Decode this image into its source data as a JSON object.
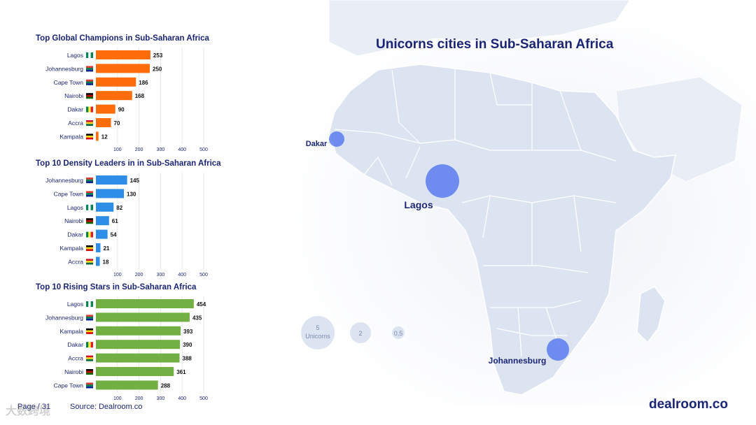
{
  "map": {
    "title": "Unicorns cities in Sub-Saharan Africa",
    "cities": [
      {
        "name": "Lagos",
        "unicorns": 5
      },
      {
        "name": "Dakar",
        "unicorns": 1
      },
      {
        "name": "Johannesburg",
        "unicorns": 2
      }
    ],
    "legend": [
      {
        "value_label": "5",
        "sub_label": "Unicorns"
      },
      {
        "value_label": "2",
        "sub_label": ""
      },
      {
        "value_label": "0,5",
        "sub_label": ""
      }
    ]
  },
  "footer": {
    "page": "Page / 31",
    "source": "Source: Dealroom.co",
    "brand": "dealroom.co",
    "watermark": "大数跨境"
  },
  "colors": {
    "navy": "#1a2575",
    "orange": "#ff6d0a",
    "blue": "#2e8de6",
    "green": "#72b043",
    "bubble": "#5b7cf0",
    "land": "#dde4f1"
  },
  "chart_data": [
    {
      "type": "bar",
      "orientation": "horizontal",
      "title": "Top Global Champions in Sub-Saharan Africa",
      "categories": [
        "Lagos",
        "Johannesburg",
        "Cape Town",
        "Nairobi",
        "Dakar",
        "Accra",
        "Kampala"
      ],
      "values": [
        253,
        250,
        186,
        168,
        90,
        70,
        12
      ],
      "flags": [
        "nigeria-flag",
        "south-africa-flag",
        "south-africa-flag",
        "kenya-flag",
        "senegal-flag",
        "ghana-flag",
        "uganda-flag"
      ],
      "xticks": [
        "100",
        "200",
        "300",
        "400",
        "500"
      ],
      "xlim": [
        0,
        500
      ],
      "color": "#ff6d0a"
    },
    {
      "type": "bar",
      "orientation": "horizontal",
      "title": "Top 10 Density Leaders in in Sub-Saharan Africa",
      "categories": [
        "Johannesburg",
        "Cape Town",
        "Lagos",
        "Nairobi",
        "Dakar",
        "Kampala",
        "Accra"
      ],
      "values": [
        145,
        130,
        82,
        61,
        54,
        21,
        18
      ],
      "flags": [
        "south-africa-flag",
        "south-africa-flag",
        "nigeria-flag",
        "kenya-flag",
        "senegal-flag",
        "uganda-flag",
        "ghana-flag"
      ],
      "xticks": [
        "100",
        "200",
        "300",
        "400",
        "500"
      ],
      "xlim": [
        0,
        500
      ],
      "color": "#2e8de6"
    },
    {
      "type": "bar",
      "orientation": "horizontal",
      "title": "Top 10 Rising Stars in Sub-Saharan Africa",
      "categories": [
        "Lagos",
        "Johannesburg",
        "Kampala",
        "Dakar",
        "Accra",
        "Nairobi",
        "Cape Town"
      ],
      "values": [
        454,
        435,
        393,
        390,
        388,
        361,
        288
      ],
      "flags": [
        "nigeria-flag",
        "south-africa-flag",
        "uganda-flag",
        "senegal-flag",
        "ghana-flag",
        "kenya-flag",
        "south-africa-flag"
      ],
      "xticks": [
        "100",
        "200",
        "300",
        "400",
        "500"
      ],
      "xlim": [
        0,
        500
      ],
      "color": "#72b043"
    }
  ]
}
